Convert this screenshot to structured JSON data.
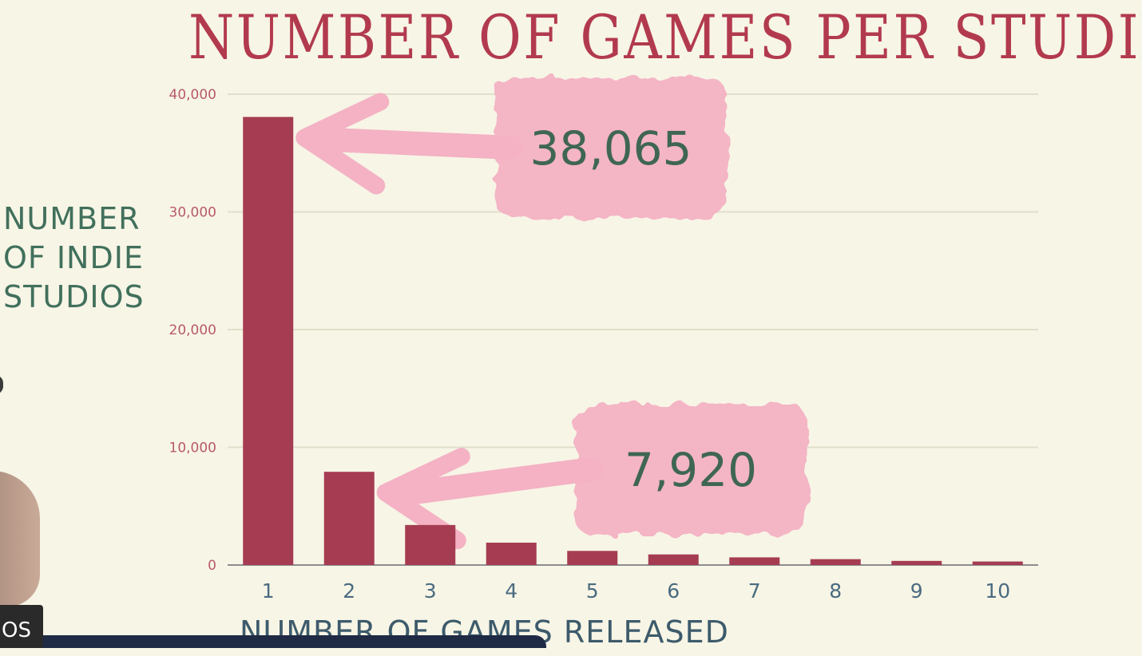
{
  "chart_data": {
    "type": "bar",
    "title": "NUMBER OF GAMES PER STUDIO",
    "xlabel": "NUMBER OF GAMES RELEASED",
    "ylabel": "NUMBER OF INDIE STUDIOS",
    "categories": [
      "1",
      "2",
      "3",
      "4",
      "5",
      "6",
      "7",
      "8",
      "9",
      "10"
    ],
    "values": [
      38065,
      7920,
      3400,
      1900,
      1200,
      900,
      650,
      500,
      350,
      300
    ],
    "ylim": [
      0,
      40000
    ],
    "y_ticks": [
      0,
      10000,
      20000,
      30000,
      40000
    ],
    "y_tick_labels": [
      "0",
      "10,000",
      "20,000",
      "30,000",
      "40,000"
    ],
    "grid": true,
    "bar_color": "#a53c52",
    "annotations": [
      {
        "text": "38,065",
        "target_category": "1"
      },
      {
        "text": "7,920",
        "target_category": "2"
      }
    ]
  },
  "overlay": {
    "corner_text": "OS"
  },
  "colors": {
    "background": "#f7f5e6",
    "title": "#b23a4e",
    "ylabel": "#41705c",
    "annotation_text": "#3f6653",
    "annotation_highlight": "#f4b2c4",
    "tick_text": "#b85a6a"
  }
}
